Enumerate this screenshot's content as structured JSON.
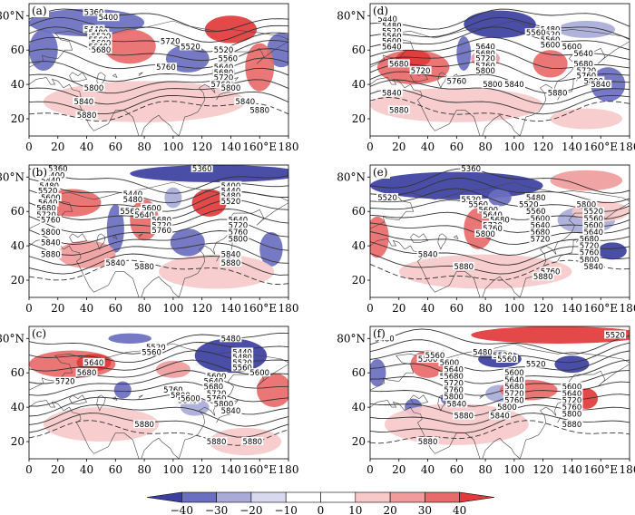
{
  "colorbar": {
    "levels": [
      "−40",
      "−30",
      "−20",
      "−10",
      "0",
      "10",
      "20",
      "30",
      "40"
    ],
    "colors": [
      "#3b3fa0",
      "#6a6fc0",
      "#a8abd8",
      "#d8d9ef",
      "#ffffff",
      "#f7c9c9",
      "#f09c9c",
      "#e96a6a",
      "#e23a3a"
    ]
  },
  "axes": {
    "x_ticks": [
      "0",
      "20",
      "40",
      "60",
      "80",
      "100",
      "120",
      "140",
      "160°E",
      "180"
    ],
    "y_ticks": [
      "20",
      "40",
      "60",
      "80°N"
    ]
  },
  "panels": [
    {
      "label": "(a)",
      "contour_labels": [
        "5360",
        "5400",
        "5440",
        "5480",
        "5520",
        "5560",
        "5600",
        "5640",
        "5680",
        "5720",
        "5520",
        "5760",
        "5800",
        "5840",
        "5880",
        "5520",
        "5560",
        "5640",
        "5680",
        "5720",
        "5760",
        "5800",
        "5840",
        "5880"
      ],
      "blobs": [
        {
          "c": "neg3",
          "cx": 40,
          "cy": 76,
          "rx": 40,
          "ry": 8
        },
        {
          "c": "neg3",
          "cx": 10,
          "cy": 60,
          "rx": 10,
          "ry": 12
        },
        {
          "c": "neg3",
          "cx": 110,
          "cy": 55,
          "rx": 15,
          "ry": 8
        },
        {
          "c": "neg3",
          "cx": 175,
          "cy": 60,
          "rx": 10,
          "ry": 10
        },
        {
          "c": "neg2",
          "cx": 135,
          "cy": 47,
          "rx": 8,
          "ry": 7
        },
        {
          "c": "pos3",
          "cx": 70,
          "cy": 62,
          "rx": 18,
          "ry": 10
        },
        {
          "c": "pos4",
          "cx": 140,
          "cy": 72,
          "rx": 18,
          "ry": 8
        },
        {
          "c": "pos3",
          "cx": 160,
          "cy": 50,
          "rx": 10,
          "ry": 14
        },
        {
          "c": "pos1",
          "cx": 80,
          "cy": 30,
          "rx": 70,
          "ry": 12
        }
      ]
    },
    {
      "label": "(b)",
      "contour_labels": [
        "5360",
        "5360",
        "5400",
        "5440",
        "5480",
        "5520",
        "5600",
        "5640",
        "5680",
        "5720",
        "5760",
        "5800",
        "5840",
        "5880",
        "5440",
        "5480",
        "5560",
        "5600",
        "5640",
        "5680",
        "5720",
        "5760",
        "5840",
        "5880",
        "5400",
        "5440",
        "5480",
        "5520",
        "5640",
        "5720",
        "5760",
        "5800",
        "5840",
        "5880"
      ],
      "blobs": [
        {
          "c": "neg4",
          "cx": 130,
          "cy": 82,
          "rx": 60,
          "ry": 5
        },
        {
          "c": "neg3",
          "cx": 60,
          "cy": 50,
          "rx": 6,
          "ry": 14
        },
        {
          "c": "neg3",
          "cx": 110,
          "cy": 42,
          "rx": 12,
          "ry": 8
        },
        {
          "c": "neg3",
          "cx": 168,
          "cy": 38,
          "rx": 8,
          "ry": 10
        },
        {
          "c": "neg2",
          "cx": 100,
          "cy": 68,
          "rx": 6,
          "ry": 6
        },
        {
          "c": "pos3",
          "cx": 30,
          "cy": 65,
          "rx": 20,
          "ry": 8
        },
        {
          "c": "pos3",
          "cx": 80,
          "cy": 55,
          "rx": 10,
          "ry": 12
        },
        {
          "c": "pos4",
          "cx": 125,
          "cy": 65,
          "rx": 12,
          "ry": 8
        },
        {
          "c": "pos2",
          "cx": 40,
          "cy": 35,
          "rx": 20,
          "ry": 8
        },
        {
          "c": "pos1",
          "cx": 130,
          "cy": 25,
          "rx": 40,
          "ry": 10
        }
      ]
    },
    {
      "label": "(c)",
      "contour_labels": [
        "5480",
        "5520",
        "5560",
        "5640",
        "5680",
        "5720",
        "5760",
        "5800",
        "5840",
        "5880",
        "5600",
        "5440",
        "5480",
        "5520",
        "5560",
        "5600",
        "5640",
        "5680",
        "5720",
        "5760",
        "5800",
        "5840",
        "5880",
        "5600",
        "5880"
      ],
      "blobs": [
        {
          "c": "neg3",
          "cx": 70,
          "cy": 80,
          "rx": 15,
          "ry": 3
        },
        {
          "c": "neg4",
          "cx": 140,
          "cy": 70,
          "rx": 25,
          "ry": 10
        },
        {
          "c": "neg3",
          "cx": 65,
          "cy": 50,
          "rx": 6,
          "ry": 5
        },
        {
          "c": "neg2",
          "cx": 115,
          "cy": 40,
          "rx": 10,
          "ry": 5
        },
        {
          "c": "pos3",
          "cx": 30,
          "cy": 65,
          "rx": 30,
          "ry": 8
        },
        {
          "c": "pos4",
          "cx": 45,
          "cy": 66,
          "rx": 12,
          "ry": 5
        },
        {
          "c": "pos3",
          "cx": 170,
          "cy": 50,
          "rx": 12,
          "ry": 10
        },
        {
          "c": "pos2",
          "cx": 100,
          "cy": 62,
          "rx": 12,
          "ry": 5
        },
        {
          "c": "pos1",
          "cx": 50,
          "cy": 30,
          "rx": 40,
          "ry": 10
        },
        {
          "c": "pos1",
          "cx": 150,
          "cy": 20,
          "rx": 25,
          "ry": 8
        }
      ]
    },
    {
      "label": "(d)",
      "contour_labels": [
        "5440",
        "5480",
        "5520",
        "5560",
        "5600",
        "5640",
        "5680",
        "5720",
        "5760",
        "5800",
        "5840",
        "5880",
        "5480",
        "5520",
        "5560",
        "5600",
        "5640",
        "5680",
        "5720",
        "5760",
        "5800",
        "5840",
        "5880",
        "5560",
        "5600",
        "5640",
        "5680",
        "5720",
        "5760",
        "5800",
        "5840"
      ],
      "blobs": [
        {
          "c": "neg4",
          "cx": 90,
          "cy": 75,
          "rx": 25,
          "ry": 8
        },
        {
          "c": "neg3",
          "cx": 65,
          "cy": 58,
          "rx": 5,
          "ry": 10
        },
        {
          "c": "neg3",
          "cx": 165,
          "cy": 40,
          "rx": 12,
          "ry": 10
        },
        {
          "c": "neg2",
          "cx": 150,
          "cy": 72,
          "rx": 20,
          "ry": 5
        },
        {
          "c": "pos3",
          "cx": 30,
          "cy": 50,
          "rx": 25,
          "ry": 10
        },
        {
          "c": "pos4",
          "cx": 30,
          "cy": 55,
          "rx": 12,
          "ry": 5
        },
        {
          "c": "pos3",
          "cx": 125,
          "cy": 52,
          "rx": 12,
          "ry": 8
        },
        {
          "c": "pos2",
          "cx": 80,
          "cy": 55,
          "rx": 10,
          "ry": 5
        },
        {
          "c": "pos1",
          "cx": 60,
          "cy": 28,
          "rx": 60,
          "ry": 10
        },
        {
          "c": "pos1",
          "cx": 150,
          "cy": 20,
          "rx": 25,
          "ry": 6
        }
      ]
    },
    {
      "label": "(e)",
      "contour_labels": [
        "5360",
        "5520",
        "5520",
        "5560",
        "5600",
        "5640",
        "5680",
        "5720",
        "5760",
        "5800",
        "5840",
        "5880",
        "5480",
        "5520",
        "5560",
        "5600",
        "5640",
        "5680",
        "5720",
        "5760",
        "5880",
        "5800",
        "5520",
        "5560",
        "5600",
        "5640",
        "5680",
        "5720",
        "5760",
        "5800",
        "5840"
      ],
      "blobs": [
        {
          "c": "neg4",
          "cx": 60,
          "cy": 75,
          "rx": 60,
          "ry": 8
        },
        {
          "c": "neg3",
          "cx": 90,
          "cy": 68,
          "rx": 8,
          "ry": 5
        },
        {
          "c": "neg4",
          "cx": 168,
          "cy": 37,
          "rx": 10,
          "ry": 5
        },
        {
          "c": "neg2",
          "cx": 150,
          "cy": 55,
          "rx": 20,
          "ry": 8
        },
        {
          "c": "pos3",
          "cx": 75,
          "cy": 50,
          "rx": 10,
          "ry": 12
        },
        {
          "c": "pos3",
          "cx": 5,
          "cy": 45,
          "rx": 8,
          "ry": 12
        },
        {
          "c": "pos2",
          "cx": 150,
          "cy": 78,
          "rx": 25,
          "ry": 6
        },
        {
          "c": "pos1",
          "cx": 80,
          "cy": 25,
          "rx": 60,
          "ry": 10
        },
        {
          "c": "pos1",
          "cx": 160,
          "cy": 60,
          "rx": 20,
          "ry": 6
        }
      ]
    },
    {
      "label": "(f)",
      "contour_labels": [
        "5520",
        "5480",
        "5560",
        "5680",
        "5480",
        "5520",
        "5560",
        "5520",
        "5600",
        "5640",
        "5680",
        "5720",
        "5760",
        "5800",
        "5840",
        "5880",
        "5560",
        "5600",
        "5640",
        "5680",
        "5720",
        "5760",
        "5800",
        "5840",
        "5880",
        "5600",
        "5640",
        "5720",
        "5760",
        "5800",
        "5880"
      ],
      "blobs": [
        {
          "c": "pos4",
          "cx": 130,
          "cy": 82,
          "rx": 60,
          "ry": 5
        },
        {
          "c": "neg4",
          "cx": 90,
          "cy": 68,
          "rx": 15,
          "ry": 5
        },
        {
          "c": "neg4",
          "cx": 140,
          "cy": 65,
          "rx": 12,
          "ry": 5
        },
        {
          "c": "neg3",
          "cx": 5,
          "cy": 60,
          "rx": 6,
          "ry": 8
        },
        {
          "c": "neg3",
          "cx": 30,
          "cy": 40,
          "rx": 6,
          "ry": 5
        },
        {
          "c": "neg3",
          "cx": 55,
          "cy": 45,
          "rx": 6,
          "ry": 4
        },
        {
          "c": "neg2",
          "cx": 90,
          "cy": 48,
          "rx": 10,
          "ry": 5
        },
        {
          "c": "pos3",
          "cx": 40,
          "cy": 65,
          "rx": 12,
          "ry": 8
        },
        {
          "c": "pos3",
          "cx": 110,
          "cy": 50,
          "rx": 20,
          "ry": 6
        },
        {
          "c": "pos4",
          "cx": 150,
          "cy": 45,
          "rx": 8,
          "ry": 6
        },
        {
          "c": "pos1",
          "cx": 60,
          "cy": 30,
          "rx": 50,
          "ry": 12
        }
      ]
    }
  ]
}
